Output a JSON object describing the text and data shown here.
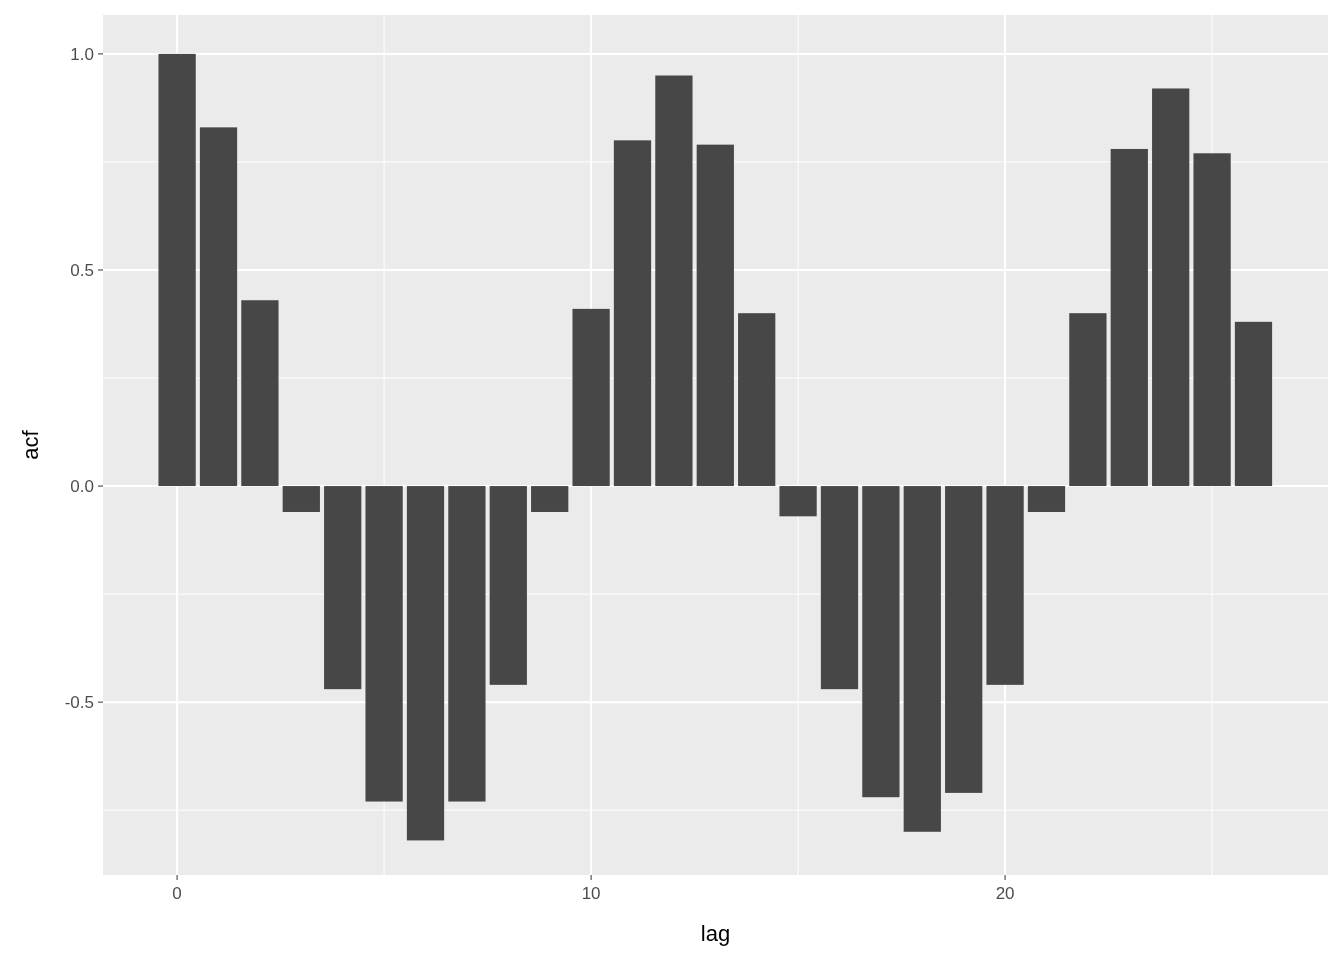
{
  "chart_data": {
    "type": "bar",
    "xlabel": "lag",
    "ylabel": "acf",
    "x": [
      0,
      1,
      2,
      3,
      4,
      5,
      6,
      7,
      8,
      9,
      10,
      11,
      12,
      13,
      14,
      15,
      16,
      17,
      18,
      19,
      20,
      21,
      22,
      23,
      24,
      25,
      26
    ],
    "values": [
      1.0,
      0.83,
      0.43,
      -0.06,
      -0.47,
      -0.73,
      -0.82,
      -0.73,
      -0.46,
      -0.06,
      0.41,
      0.8,
      0.95,
      0.79,
      0.4,
      -0.07,
      -0.47,
      -0.72,
      -0.8,
      -0.71,
      -0.46,
      -0.06,
      0.4,
      0.78,
      0.92,
      0.77,
      0.38
    ],
    "color": "#474747",
    "xlim": [
      -1.79,
      27.8
    ],
    "ylim": [
      -0.9,
      1.09
    ],
    "xticks": [
      0,
      {
        "value": 5,
        "label": null
      },
      10,
      {
        "value": 15,
        "label": null
      },
      20,
      {
        "value": 25,
        "label": null
      }
    ],
    "yticks": [
      {
        "value": -0.75,
        "label": null
      },
      {
        "value": -0.5,
        "label": "-0.5"
      },
      {
        "value": -0.25,
        "label": null
      },
      {
        "value": 0,
        "label": "0.0"
      },
      {
        "value": 0.25,
        "label": null
      },
      {
        "value": 0.5,
        "label": "0.5"
      },
      {
        "value": 0.75,
        "label": null
      },
      {
        "value": 1,
        "label": "1.0"
      }
    ],
    "grid": true
  }
}
